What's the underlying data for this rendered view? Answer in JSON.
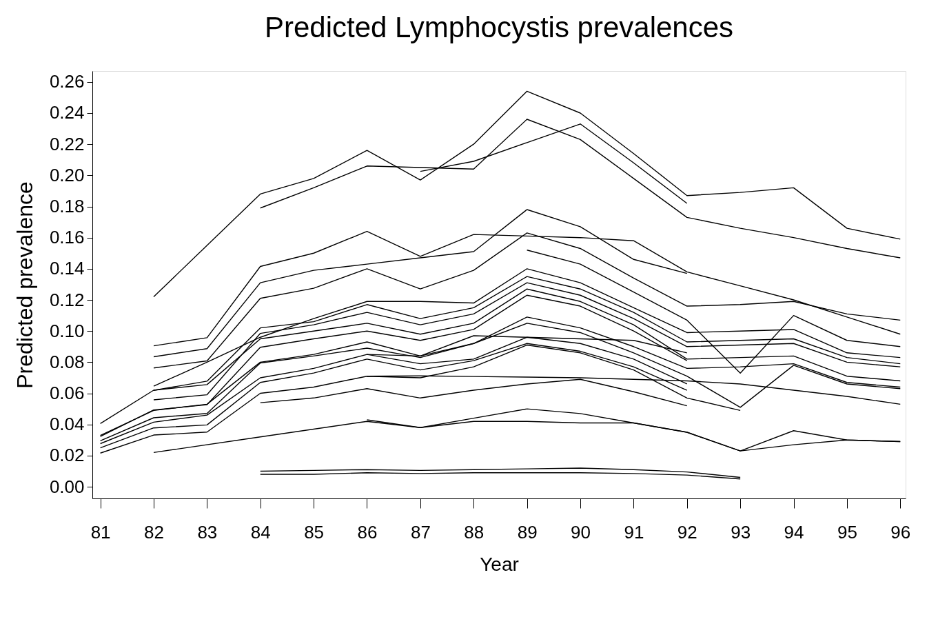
{
  "chart_data": {
    "type": "line",
    "title": "Predicted Lymphocystis prevalences",
    "xlabel": "Year",
    "ylabel": "Predicted prevalence",
    "x": [
      81,
      82,
      83,
      84,
      85,
      86,
      87,
      88,
      89,
      90,
      91,
      92,
      93,
      94,
      95,
      96
    ],
    "xlim": [
      80.85,
      96.1
    ],
    "xticks": [
      81,
      82,
      83,
      84,
      85,
      86,
      87,
      88,
      89,
      90,
      91,
      92,
      93,
      94,
      95,
      96
    ],
    "ylim": [
      -0.0075,
      0.267
    ],
    "yticks": [
      {
        "value": 0,
        "label": "0.00"
      },
      {
        "value": 0.02,
        "label": "0.02"
      },
      {
        "value": 0.04,
        "label": "0.04"
      },
      {
        "value": 0.06,
        "label": "0.06"
      },
      {
        "value": 0.08,
        "label": "0.08"
      },
      {
        "value": 0.1,
        "label": "0.10"
      },
      {
        "value": 0.12,
        "label": "0.12"
      },
      {
        "value": 0.14,
        "label": "0.14"
      },
      {
        "value": 0.16,
        "label": "0.16"
      },
      {
        "value": 0.18,
        "label": "0.18"
      },
      {
        "value": 0.2,
        "label": "0.20"
      },
      {
        "value": 0.22,
        "label": "0.22"
      },
      {
        "value": 0.24,
        "label": "0.24"
      },
      {
        "value": 0.26,
        "label": "0.26"
      }
    ],
    "grid": false,
    "legend": false,
    "marker": "none",
    "line_style": "solid",
    "series": [
      {
        "color": "#000000",
        "values": [
          null,
          0.122,
          0.155,
          0.188,
          0.198,
          0.216,
          0.197,
          0.22,
          0.254,
          0.24,
          0.214,
          0.187,
          0.189,
          0.192,
          0.166,
          0.159
        ]
      },
      {
        "color": "#000000",
        "values": [
          null,
          null,
          null,
          0.179,
          0.192,
          0.206,
          0.205,
          0.204,
          0.236,
          0.223,
          0.198,
          0.173,
          0.166,
          0.16,
          0.153,
          0.147
        ]
      },
      {
        "color": "#000000",
        "values": [
          null,
          null,
          null,
          null,
          null,
          null,
          0.2025,
          0.209,
          0.221,
          0.233,
          0.208,
          0.182,
          null,
          null,
          null,
          null
        ]
      },
      {
        "color": "#000000",
        "values": [
          null,
          0.0905,
          0.0957,
          0.1415,
          0.15,
          0.164,
          0.148,
          0.162,
          0.161,
          0.16,
          0.158,
          0.138,
          0.129,
          0.12,
          0.109,
          0.098
        ]
      },
      {
        "color": "#000000",
        "values": [
          null,
          0.0835,
          0.0887,
          0.131,
          0.139,
          0.143,
          0.147,
          0.151,
          0.178,
          0.167,
          0.146,
          0.137,
          null,
          null,
          null,
          null
        ]
      },
      {
        "color": "#000000",
        "values": [
          null,
          0.0763,
          0.0808,
          0.121,
          0.1275,
          0.14,
          0.127,
          0.139,
          0.163,
          0.153,
          0.134,
          0.116,
          0.117,
          0.119,
          0.111,
          0.107
        ]
      },
      {
        "color": "#000000",
        "values": [
          null,
          null,
          null,
          null,
          null,
          null,
          null,
          null,
          0.152,
          0.143,
          0.125,
          0.107,
          0.073,
          0.11,
          0.094,
          0.09
        ]
      },
      {
        "color": "#000000",
        "values": [
          null,
          0.0646,
          0.08,
          0.096,
          0.108,
          0.119,
          0.119,
          0.118,
          0.14,
          0.131,
          0.115,
          0.099,
          0.1,
          0.101,
          0.086,
          0.083
        ]
      },
      {
        "color": "#000000",
        "values": [
          null,
          0.0619,
          0.0678,
          0.102,
          0.106,
          0.117,
          0.108,
          0.115,
          0.135,
          0.127,
          0.112,
          0.093,
          0.094,
          0.095,
          0.083,
          0.079
        ]
      },
      {
        "color": "#000000",
        "values": [
          null,
          0.0558,
          0.0591,
          0.0985,
          0.104,
          0.112,
          0.104,
          0.111,
          0.131,
          0.123,
          0.108,
          0.09,
          0.091,
          0.092,
          0.08,
          0.077
        ]
      },
      {
        "color": "#000000",
        "values": [
          0.0406,
          0.062,
          0.0656,
          0.095,
          0.1,
          0.105,
          0.098,
          0.105,
          0.127,
          0.119,
          0.104,
          0.082,
          0.083,
          0.084,
          0.071,
          0.068
        ]
      },
      {
        "color": "#000000",
        "values": [
          0.0323,
          0.0493,
          0.0527,
          0.0896,
          0.095,
          0.1,
          0.094,
          0.101,
          0.123,
          0.116,
          0.1,
          0.081,
          null,
          null,
          null,
          null
        ]
      },
      {
        "color": "#000000",
        "values": [
          0.033,
          0.049,
          0.053,
          0.08,
          0.085,
          0.093,
          0.084,
          0.092,
          0.109,
          0.102,
          0.09,
          0.076,
          0.077,
          0.079,
          0.067,
          0.064
        ]
      },
      {
        "color": "#000000",
        "values": [
          0.0295,
          0.0443,
          0.0471,
          0.0795,
          0.084,
          0.089,
          0.083,
          0.092,
          0.105,
          0.099,
          0.086,
          0.071,
          0.051,
          0.078,
          0.066,
          0.063
        ]
      },
      {
        "color": "#000000",
        "values": [
          0.0277,
          0.0415,
          0.046,
          0.07,
          0.076,
          0.085,
          0.079,
          0.082,
          0.096,
          0.092,
          0.082,
          0.066,
          null,
          null,
          null,
          null
        ]
      },
      {
        "color": "#000000",
        "values": [
          0.025,
          0.0378,
          0.0397,
          0.067,
          0.073,
          0.082,
          0.075,
          0.081,
          0.092,
          0.087,
          0.077,
          0.062,
          null,
          null,
          null,
          null
        ]
      },
      {
        "color": "#000000",
        "values": [
          0.0216,
          0.0332,
          0.0351,
          0.06,
          0.064,
          0.071,
          0.07,
          0.077,
          0.091,
          0.086,
          0.075,
          0.057,
          0.049,
          null,
          null,
          null
        ]
      },
      {
        "color": "#000000",
        "values": [
          null,
          null,
          null,
          0.054,
          0.057,
          0.063,
          0.057,
          0.062,
          0.066,
          0.069,
          0.061,
          0.052,
          null,
          null,
          null,
          null
        ]
      },
      {
        "color": "#000000",
        "values": [
          null,
          null,
          null,
          null,
          null,
          0.071,
          0.0712,
          0.0708,
          0.0704,
          0.07,
          0.069,
          0.068,
          0.066,
          0.062,
          0.058,
          0.053
        ]
      },
      {
        "color": "#000000",
        "values": [
          null,
          null,
          null,
          null,
          null,
          0.085,
          0.084,
          0.097,
          0.096,
          0.095,
          0.094,
          0.086,
          null,
          null,
          null,
          null
        ]
      },
      {
        "color": "#000000",
        "values": [
          null,
          0.022,
          null,
          0.032,
          null,
          0.042,
          0.038,
          0.042,
          0.042,
          0.041,
          0.041,
          0.035,
          0.023,
          0.027,
          0.03,
          0.029
        ]
      },
      {
        "color": "#000000",
        "values": [
          null,
          null,
          null,
          null,
          null,
          0.043,
          0.038,
          0.044,
          0.05,
          0.047,
          0.041,
          0.035,
          0.023,
          0.036,
          0.03,
          0.029
        ]
      },
      {
        "color": "#000000",
        "values": [
          null,
          null,
          null,
          0.01,
          0.0105,
          0.011,
          0.0105,
          0.011,
          0.0115,
          0.012,
          0.011,
          0.0095,
          0.006,
          null,
          null,
          null
        ]
      },
      {
        "color": "#000000",
        "values": [
          null,
          null,
          null,
          0.008,
          0.008,
          0.009,
          0.0085,
          0.009,
          0.009,
          0.009,
          0.0085,
          0.0075,
          0.005,
          null,
          null,
          null
        ]
      }
    ]
  }
}
